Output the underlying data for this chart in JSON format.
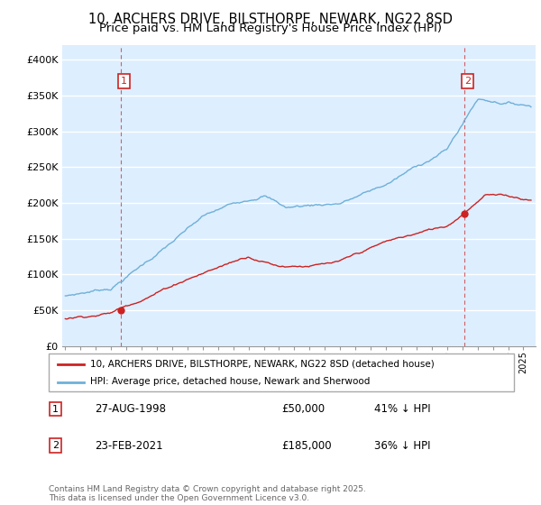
{
  "title": "10, ARCHERS DRIVE, BILSTHORPE, NEWARK, NG22 8SD",
  "subtitle": "Price paid vs. HM Land Registry's House Price Index (HPI)",
  "ylabel_ticks": [
    "£0",
    "£50K",
    "£100K",
    "£150K",
    "£200K",
    "£250K",
    "£300K",
    "£350K",
    "£400K"
  ],
  "ytick_values": [
    0,
    50000,
    100000,
    150000,
    200000,
    250000,
    300000,
    350000,
    400000
  ],
  "ylim": [
    0,
    420000
  ],
  "xlim_start": 1994.8,
  "xlim_end": 2025.8,
  "hpi_color": "#6eb0d8",
  "price_color": "#cc2222",
  "vline_color": "#cc2222",
  "grid_color": "#cccccc",
  "bg_color": "#ddeeff",
  "legend_label_price": "10, ARCHERS DRIVE, BILSTHORPE, NEWARK, NG22 8SD (detached house)",
  "legend_label_hpi": "HPI: Average price, detached house, Newark and Sherwood",
  "transaction1_label": "1",
  "transaction1_date": "27-AUG-1998",
  "transaction1_price": "£50,000",
  "transaction1_hpi": "41% ↓ HPI",
  "transaction1_year": 1998.65,
  "transaction1_value": 50000,
  "transaction2_label": "2",
  "transaction2_date": "23-FEB-2021",
  "transaction2_price": "£185,000",
  "transaction2_hpi": "36% ↓ HPI",
  "transaction2_year": 2021.14,
  "transaction2_value": 185000,
  "footer": "Contains HM Land Registry data © Crown copyright and database right 2025.\nThis data is licensed under the Open Government Licence v3.0.",
  "title_fontsize": 10.5,
  "subtitle_fontsize": 9.5
}
